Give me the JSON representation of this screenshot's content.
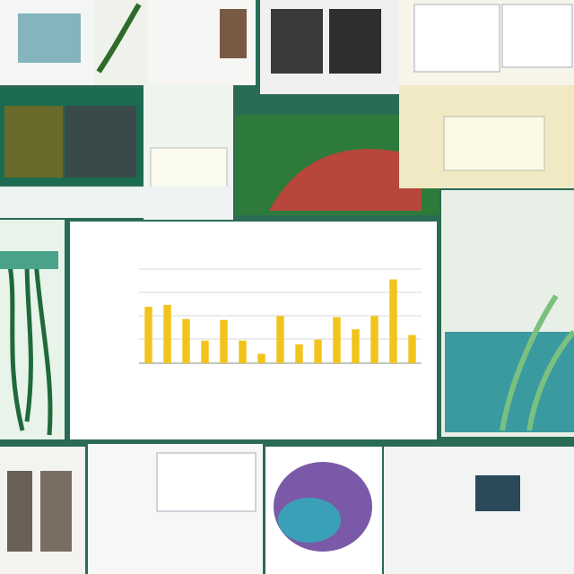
{
  "chart_data": {
    "type": "bar",
    "values": [
      60,
      62,
      47,
      24,
      46,
      24,
      10,
      50,
      20,
      25,
      49,
      36,
      50,
      89,
      30
    ],
    "color": "#f2c31a",
    "ylim": [
      0,
      100
    ],
    "grid": true
  }
}
